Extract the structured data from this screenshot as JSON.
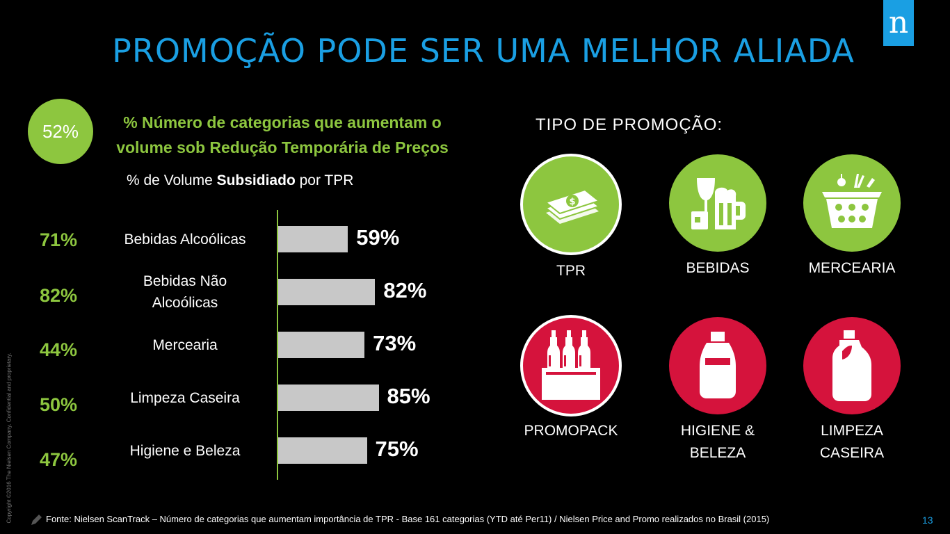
{
  "title": "PROMOÇÃO PODE SER UMA MELHOR ALIADA",
  "logo_letter": "n",
  "highlight": {
    "value": "52%",
    "text_line1": "% Número de categorias que aumentam o",
    "text_line2": "volume sob Redução Temporária de Preços"
  },
  "subtitle": {
    "pre": "% de Volume ",
    "bold": "Subsidiado",
    "post": " por TPR"
  },
  "chart_data": {
    "type": "bar",
    "orientation": "horizontal",
    "categories": [
      "Bebidas Alcoólicas",
      "Bebidas Não Alcoólicas",
      "Mercearia",
      "Limpeza  Caseira",
      "Higiene e Beleza"
    ],
    "category_lines": [
      [
        "Bebidas Alcoólicas"
      ],
      [
        "Bebidas Não",
        "Alcoólicas"
      ],
      [
        "Mercearia"
      ],
      [
        "Limpeza  Caseira"
      ],
      [
        "Higiene e Beleza"
      ]
    ],
    "values": [
      59,
      82,
      73,
      85,
      75
    ],
    "value_labels": [
      "59%",
      "82%",
      "73%",
      "85%",
      "75%"
    ],
    "left_values": [
      71,
      82,
      44,
      50,
      47
    ],
    "left_value_labels": [
      "71%",
      "82%",
      "44%",
      "50%",
      "47%"
    ],
    "xlim": [
      0,
      100
    ],
    "grid": false,
    "bar_color": "#c8c8c8",
    "axis_color": "#8dc63f"
  },
  "promo_types": {
    "heading": "TIPO DE PROMOÇÃO:",
    "items": [
      {
        "label_lines": [
          "TPR"
        ],
        "icon": "money-icon",
        "color": "#8dc63f"
      },
      {
        "label_lines": [
          "BEBIDAS"
        ],
        "icon": "drinks-icon",
        "color": "#8dc63f"
      },
      {
        "label_lines": [
          "MERCEARIA"
        ],
        "icon": "basket-icon",
        "color": "#8dc63f"
      },
      {
        "label_lines": [
          "PROMOPACK"
        ],
        "icon": "six-pack-icon",
        "color": "#d5133c"
      },
      {
        "label_lines": [
          "HIGIENE &",
          "BELEZA"
        ],
        "icon": "lotion-bottle-icon",
        "color": "#d5133c"
      },
      {
        "label_lines": [
          "LIMPEZA",
          "CASEIRA"
        ],
        "icon": "detergent-bottle-icon",
        "color": "#d5133c"
      }
    ]
  },
  "footer": "Fonte:  Nielsen ScanTrack – Número de categorias que aumentam importância de TPR - Base 161 categorias (YTD até Per11)  / Nielsen Price and Promo realizados no Brasil (2015)",
  "page_number": "13",
  "copyright": "Copyright ©2016 The Nielsen Company. Confidential and proprietary.",
  "colors": {
    "accent_blue": "#1a9fe3",
    "accent_green": "#8dc63f",
    "accent_red": "#d5133c",
    "background": "#000000"
  }
}
